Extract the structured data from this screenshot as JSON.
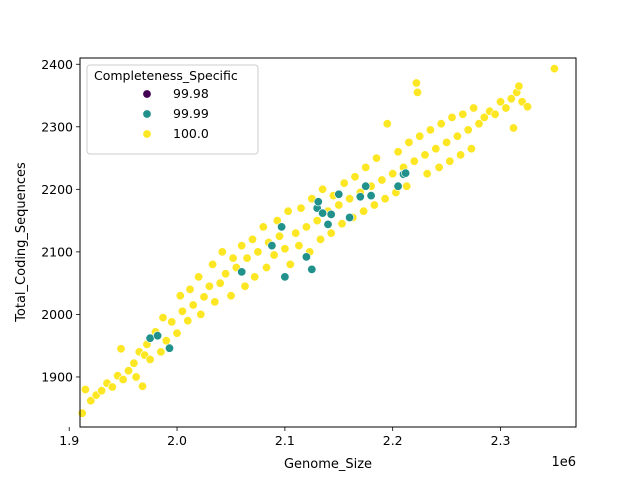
{
  "chart_data": {
    "type": "scatter",
    "title": "",
    "xlabel": "Genome_Size",
    "ylabel": "Total_Coding_Sequences",
    "x_scale_label": "1e6",
    "xlim": [
      1.91,
      2.37
    ],
    "ylim": [
      1820,
      2410
    ],
    "x_ticks": [
      1.9,
      2.0,
      2.1,
      2.2,
      2.3
    ],
    "x_tick_labels": [
      "1.9",
      "2.0",
      "2.1",
      "2.2",
      "2.3"
    ],
    "y_ticks": [
      1900,
      2000,
      2100,
      2200,
      2300,
      2400
    ],
    "y_tick_labels": [
      "1900",
      "2000",
      "2100",
      "2200",
      "2300",
      "2400"
    ],
    "grid": false,
    "legend": {
      "title": "Completeness_Specific",
      "placement": "top-left",
      "entries": [
        {
          "label": "99.98",
          "color": "#440154"
        },
        {
          "label": "99.99",
          "color": "#21918c"
        },
        {
          "label": "100.0",
          "color": "#fde725"
        }
      ]
    },
    "series": [
      {
        "name": "99.98",
        "color": "#440154",
        "points": []
      },
      {
        "name": "99.99",
        "color": "#21918c",
        "points": [
          [
            1.975,
            1962
          ],
          [
            1.982,
            1966
          ],
          [
            1.993,
            1946
          ],
          [
            2.06,
            2068
          ],
          [
            2.088,
            2110
          ],
          [
            2.097,
            2140
          ],
          [
            2.1,
            2060
          ],
          [
            2.12,
            2092
          ],
          [
            2.125,
            2072
          ],
          [
            2.13,
            2170
          ],
          [
            2.131,
            2180
          ],
          [
            2.135,
            2162
          ],
          [
            2.14,
            2144
          ],
          [
            2.143,
            2160
          ],
          [
            2.15,
            2192
          ],
          [
            2.16,
            2155
          ],
          [
            2.17,
            2188
          ],
          [
            2.175,
            2205
          ],
          [
            2.18,
            2190
          ],
          [
            2.205,
            2205
          ],
          [
            2.21,
            2224
          ],
          [
            2.212,
            2226
          ]
        ]
      },
      {
        "name": "100.0",
        "color": "#fde725",
        "points": [
          [
            1.912,
            1842
          ],
          [
            1.915,
            1880
          ],
          [
            1.92,
            1862
          ],
          [
            1.925,
            1871
          ],
          [
            1.93,
            1878
          ],
          [
            1.935,
            1890
          ],
          [
            1.94,
            1884
          ],
          [
            1.945,
            1902
          ],
          [
            1.948,
            1945
          ],
          [
            1.95,
            1896
          ],
          [
            1.955,
            1910
          ],
          [
            1.96,
            1922
          ],
          [
            1.962,
            1900
          ],
          [
            1.965,
            1940
          ],
          [
            1.968,
            1885
          ],
          [
            1.97,
            1935
          ],
          [
            1.972,
            1952
          ],
          [
            1.975,
            1928
          ],
          [
            1.98,
            1972
          ],
          [
            1.985,
            1940
          ],
          [
            1.987,
            1995
          ],
          [
            1.99,
            1958
          ],
          [
            1.995,
            1988
          ],
          [
            2.0,
            1970
          ],
          [
            2.003,
            2030
          ],
          [
            2.005,
            2005
          ],
          [
            2.01,
            1990
          ],
          [
            2.012,
            2040
          ],
          [
            2.015,
            2015
          ],
          [
            2.02,
            2060
          ],
          [
            2.022,
            2000
          ],
          [
            2.025,
            2028
          ],
          [
            2.03,
            2045
          ],
          [
            2.033,
            2080
          ],
          [
            2.035,
            2020
          ],
          [
            2.04,
            2050
          ],
          [
            2.042,
            2100
          ],
          [
            2.045,
            2065
          ],
          [
            2.05,
            2030
          ],
          [
            2.052,
            2090
          ],
          [
            2.055,
            2075
          ],
          [
            2.06,
            2110
          ],
          [
            2.063,
            2045
          ],
          [
            2.065,
            2090
          ],
          [
            2.07,
            2120
          ],
          [
            2.072,
            2060
          ],
          [
            2.075,
            2100
          ],
          [
            2.08,
            2140
          ],
          [
            2.083,
            2075
          ],
          [
            2.085,
            2115
          ],
          [
            2.09,
            2095
          ],
          [
            2.093,
            2150
          ],
          [
            2.095,
            2125
          ],
          [
            2.1,
            2105
          ],
          [
            2.103,
            2165
          ],
          [
            2.105,
            2080
          ],
          [
            2.11,
            2130
          ],
          [
            2.113,
            2110
          ],
          [
            2.115,
            2170
          ],
          [
            2.12,
            2140
          ],
          [
            2.123,
            2100
          ],
          [
            2.125,
            2185
          ],
          [
            2.13,
            2150
          ],
          [
            2.133,
            2120
          ],
          [
            2.135,
            2200
          ],
          [
            2.14,
            2165
          ],
          [
            2.143,
            2130
          ],
          [
            2.145,
            2190
          ],
          [
            2.15,
            2175
          ],
          [
            2.153,
            2145
          ],
          [
            2.155,
            2210
          ],
          [
            2.16,
            2185
          ],
          [
            2.163,
            2155
          ],
          [
            2.165,
            2220
          ],
          [
            2.17,
            2195
          ],
          [
            2.173,
            2165
          ],
          [
            2.175,
            2235
          ],
          [
            2.18,
            2205
          ],
          [
            2.183,
            2175
          ],
          [
            2.185,
            2250
          ],
          [
            2.19,
            2215
          ],
          [
            2.193,
            2185
          ],
          [
            2.195,
            2305
          ],
          [
            2.2,
            2225
          ],
          [
            2.203,
            2195
          ],
          [
            2.205,
            2260
          ],
          [
            2.21,
            2235
          ],
          [
            2.213,
            2205
          ],
          [
            2.215,
            2275
          ],
          [
            2.22,
            2245
          ],
          [
            2.222,
            2370
          ],
          [
            2.223,
            2355
          ],
          [
            2.225,
            2285
          ],
          [
            2.23,
            2255
          ],
          [
            2.232,
            2225
          ],
          [
            2.235,
            2295
          ],
          [
            2.24,
            2265
          ],
          [
            2.243,
            2235
          ],
          [
            2.245,
            2305
          ],
          [
            2.25,
            2275
          ],
          [
            2.253,
            2245
          ],
          [
            2.255,
            2315
          ],
          [
            2.26,
            2285
          ],
          [
            2.263,
            2255
          ],
          [
            2.265,
            2320
          ],
          [
            2.27,
            2295
          ],
          [
            2.273,
            2265
          ],
          [
            2.275,
            2330
          ],
          [
            2.28,
            2305
          ],
          [
            2.285,
            2315
          ],
          [
            2.29,
            2325
          ],
          [
            2.295,
            2320
          ],
          [
            2.3,
            2340
          ],
          [
            2.305,
            2330
          ],
          [
            2.31,
            2345
          ],
          [
            2.312,
            2298
          ],
          [
            2.315,
            2355
          ],
          [
            2.317,
            2365
          ],
          [
            2.32,
            2340
          ],
          [
            2.325,
            2332
          ],
          [
            2.35,
            2393
          ]
        ]
      }
    ]
  }
}
